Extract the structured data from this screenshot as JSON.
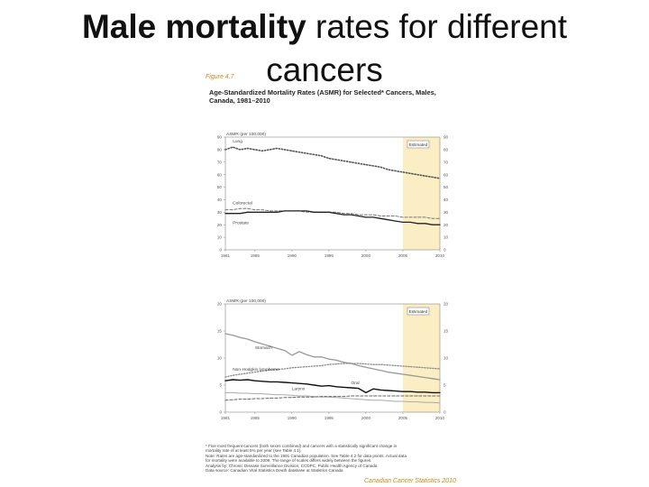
{
  "slide": {
    "title_bold": "Male mortality",
    "title_rest": " rates for different",
    "title_line2": "cancers"
  },
  "figure": {
    "label": "Figure 4.7",
    "title_line1": "Age-Standardized Mortality Rates (ASMR) for Selected* Cancers, Males,",
    "title_line2": "Canada, 1981–2010"
  },
  "chart_data": [
    {
      "type": "line",
      "ylabel": "ASMR (per 100,000)",
      "estimate_label": "Estimated",
      "xlim": [
        1981,
        2010
      ],
      "ylim": [
        0,
        90
      ],
      "xticks": [
        "1981",
        "1985",
        "1990",
        "1995",
        "2000",
        "2005",
        "2010"
      ],
      "xtick_values": [
        1981,
        1985,
        1990,
        1995,
        2000,
        2005,
        2010
      ],
      "yticks": [
        0,
        10,
        20,
        30,
        40,
        50,
        60,
        70,
        80,
        90
      ],
      "estimate_range": [
        2005,
        2010
      ],
      "x": [
        1981,
        1982,
        1983,
        1984,
        1985,
        1986,
        1987,
        1988,
        1989,
        1990,
        1991,
        1992,
        1993,
        1994,
        1995,
        1996,
        1997,
        1998,
        1999,
        2000,
        2001,
        2002,
        2003,
        2004,
        2005,
        2006,
        2007,
        2008,
        2009,
        2010
      ],
      "series": [
        {
          "name": "Lung",
          "color": "#555555",
          "dash": "1.2,2",
          "width": 1.6,
          "values": [
            80,
            82,
            80,
            81,
            80,
            79,
            80,
            81,
            80,
            79,
            78,
            77,
            76,
            75,
            73,
            72,
            71,
            70,
            69,
            68,
            67,
            66,
            64,
            63,
            62,
            61,
            60,
            59,
            58,
            57
          ]
        },
        {
          "name": "Colorectal",
          "color": "#777777",
          "dash": "3,2",
          "width": 1,
          "values": [
            32,
            32,
            33,
            33,
            32,
            32,
            31,
            31,
            31,
            31,
            31,
            30,
            30,
            30,
            30,
            30,
            29,
            29,
            28,
            28,
            28,
            27,
            27,
            27,
            26,
            26,
            26,
            26,
            25,
            25
          ]
        },
        {
          "name": "Prostate",
          "color": "#222222",
          "dash": "",
          "width": 1.3,
          "values": [
            29,
            29,
            29,
            30,
            30,
            30,
            30,
            30,
            31,
            31,
            31,
            31,
            30,
            30,
            30,
            29,
            28,
            28,
            27,
            26,
            26,
            25,
            24,
            23,
            22,
            22,
            21,
            21,
            20,
            20
          ]
        }
      ]
    },
    {
      "type": "line",
      "ylabel": "ASMR (per 100,000)",
      "estimate_label": "Estimated",
      "xlim": [
        1981,
        2010
      ],
      "ylim": [
        0,
        20
      ],
      "xticks": [
        "1981",
        "1985",
        "1990",
        "1995",
        "2000",
        "2005",
        "2010"
      ],
      "xtick_values": [
        1981,
        1985,
        1990,
        1995,
        2000,
        2005,
        2010
      ],
      "yticks": [
        0,
        5,
        10,
        15,
        20
      ],
      "estimate_range": [
        2005,
        2010
      ],
      "x": [
        1981,
        1982,
        1983,
        1984,
        1985,
        1986,
        1987,
        1988,
        1989,
        1990,
        1991,
        1992,
        1993,
        1994,
        1995,
        1996,
        1997,
        1998,
        1999,
        2000,
        2001,
        2002,
        2003,
        2004,
        2005,
        2006,
        2007,
        2008,
        2009,
        2010
      ],
      "series": [
        {
          "name": "Stomach",
          "color": "#999999",
          "dash": "",
          "width": 1.3,
          "values": [
            14.5,
            14.2,
            13.8,
            13.5,
            13,
            12.6,
            12.2,
            11.8,
            11.4,
            10.5,
            11.2,
            10.6,
            10.2,
            10.2,
            9.8,
            9.6,
            9.2,
            9.0,
            8.6,
            8.3,
            8.0,
            7.7,
            7.4,
            7.2,
            7.0,
            6.8,
            6.6,
            6.4,
            6.2,
            6.0
          ]
        },
        {
          "name": "Non-Hodgkin lymphoma",
          "color": "#888888",
          "dash": "1.2,1.8",
          "width": 1.3,
          "values": [
            6.5,
            6.8,
            7.0,
            7.2,
            7.4,
            7.6,
            7.8,
            7.9,
            8.0,
            8.2,
            8.3,
            8.4,
            8.5,
            8.6,
            8.8,
            8.9,
            9.0,
            9.0,
            9.0,
            8.9,
            8.8,
            8.8,
            8.7,
            8.6,
            8.5,
            8.4,
            8.3,
            8.2,
            8.1,
            8.0
          ]
        },
        {
          "name": "Oral",
          "color": "#111111",
          "dash": "",
          "width": 1.4,
          "values": [
            5.8,
            6.0,
            5.9,
            6.0,
            5.8,
            5.7,
            5.6,
            5.6,
            5.5,
            5.4,
            5.3,
            5.2,
            5.0,
            4.8,
            4.9,
            4.7,
            4.6,
            4.5,
            4.4,
            3.6,
            4.3,
            4.1,
            4.0,
            3.9,
            3.8,
            3.8,
            3.7,
            3.7,
            3.6,
            3.6
          ]
        },
        {
          "name": "Larynx",
          "color": "#aaaaaa",
          "dash": "",
          "width": 1,
          "values": [
            3.6,
            3.6,
            3.5,
            3.5,
            3.4,
            3.4,
            3.3,
            3.2,
            3.2,
            3.1,
            3.0,
            3.0,
            2.9,
            2.8,
            2.8,
            2.7,
            2.6,
            2.5,
            2.4,
            2.3,
            2.2,
            2.2,
            2.1,
            2.0,
            2.0,
            1.9,
            1.9,
            1.8,
            1.8,
            1.7
          ]
        },
        {
          "name": "",
          "color": "#666666",
          "dash": "3,2",
          "width": 1,
          "values": [
            2.2,
            2.3,
            2.4,
            2.4,
            2.5,
            2.5,
            2.6,
            2.6,
            2.7,
            2.7,
            2.8,
            2.8,
            2.8,
            2.9,
            2.9,
            2.9,
            2.9,
            3.0,
            3.0,
            3.0,
            3.0,
            3.0,
            3.0,
            3.0,
            3.0,
            3.0,
            3.0,
            3.0,
            3.0,
            3.0
          ]
        }
      ]
    }
  ],
  "footnotes": [
    "* Five most frequent cancers (both sexes combined) and cancers with a statistically significant change in",
    "mortality rate of at least 5% per year (see Table 4.1).",
    "Note: Rates are age-standardized to the 1991 Canadian population. See Table 4.2 for data points. Actual data",
    "for mortality were available to 2009. The range of scales differs widely between the figures.",
    "Analysis by: Chronic Disease Surveillance Division, CCDPC, Public Health Agency of Canada",
    "Data source: Canadian Vital Statistics Death database at Statistics Canada"
  ],
  "source_tag": "Canadian Cancer Statistics 2010"
}
